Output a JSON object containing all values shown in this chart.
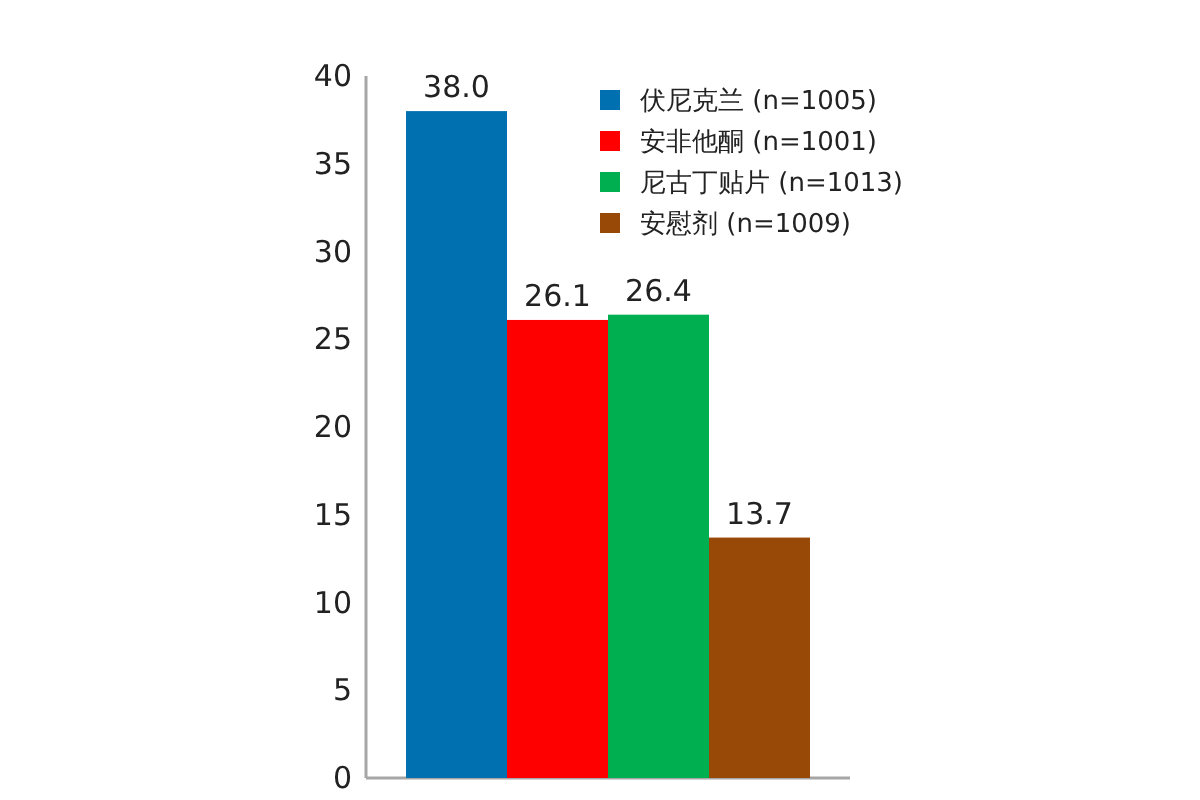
{
  "chart_data": {
    "type": "bar",
    "categories": [
      null
    ],
    "series": [
      {
        "name": "伏尼克兰 (n=1005)",
        "color": "#0070b0",
        "values": [
          38.0
        ],
        "value_labels": [
          "38.0"
        ]
      },
      {
        "name": "安非他酮 (n=1001)",
        "color": "#ff0000",
        "values": [
          26.1
        ],
        "value_labels": [
          "26.1"
        ]
      },
      {
        "name": "尼古丁贴片 (n=1013)",
        "color": "#00b050",
        "values": [
          26.4
        ],
        "value_labels": [
          "26.4"
        ]
      },
      {
        "name": "安慰剂 (n=1009)",
        "color": "#984807",
        "values": [
          13.7
        ],
        "value_labels": [
          "13.7"
        ]
      }
    ],
    "ylim": [
      0,
      40
    ],
    "yticks": [
      0,
      5,
      10,
      15,
      20,
      25,
      30,
      35,
      40
    ],
    "legend": "top right"
  }
}
